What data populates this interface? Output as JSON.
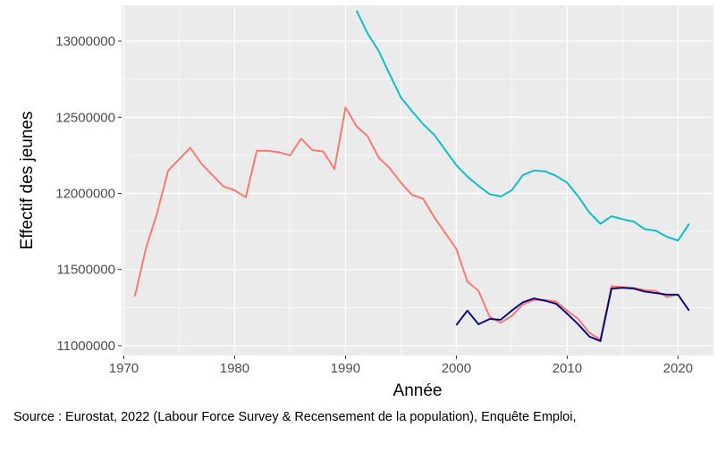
{
  "chart_data": {
    "type": "line",
    "xlabel": "Année",
    "ylabel": "Effectif des jeunes",
    "caption": "Source : Eurostat, 2022 (Labour Force Survey & Recensement de la population), Enquête Emploi,",
    "xlim": [
      1969.8,
      2023.2
    ],
    "ylim": [
      10935000,
      13235000
    ],
    "x_ticks": [
      1970,
      1980,
      1990,
      2000,
      2010,
      2020
    ],
    "y_ticks": [
      11000000,
      11500000,
      12000000,
      12500000,
      13000000
    ],
    "x_tick_labels": [
      "1970",
      "1980",
      "1990",
      "2000",
      "2010",
      "2020"
    ],
    "y_tick_labels": [
      "11000000",
      "11500000",
      "12000000",
      "12500000",
      "13000000"
    ],
    "grid": true,
    "legend": "none",
    "series": [
      {
        "color": "#F8766D",
        "x": [
          1971,
          1972,
          1973,
          1974,
          1975,
          1976,
          1977,
          1978,
          1979,
          1980,
          1981,
          1982,
          1983,
          1984,
          1985,
          1986,
          1987,
          1988,
          1989,
          1990,
          1991,
          1992,
          1993,
          1994,
          1995,
          1996,
          1997,
          1998,
          1999,
          2000,
          2001,
          2002,
          2003,
          2004,
          2005,
          2006,
          2007,
          2008,
          2009,
          2010,
          2011,
          2012,
          2013,
          2014,
          2015,
          2016,
          2017,
          2018,
          2019,
          2020
        ],
        "y": [
          11325000,
          11640000,
          11870000,
          12150000,
          12225000,
          12300000,
          12195000,
          12120000,
          12045000,
          12020000,
          11975000,
          12280000,
          12280000,
          12270000,
          12250000,
          12360000,
          12285000,
          12275000,
          12160000,
          12565000,
          12440000,
          12375000,
          12235000,
          12165000,
          12070000,
          11990000,
          11965000,
          11845000,
          11740000,
          11635000,
          11420000,
          11360000,
          11190000,
          11150000,
          11195000,
          11270000,
          11300000,
          11300000,
          11290000,
          11230000,
          11175000,
          11085000,
          11040000,
          11390000,
          11385000,
          11380000,
          11365000,
          11360000,
          11320000,
          11335000
        ]
      },
      {
        "color": "#00BFC4",
        "x": [
          1991,
          1992,
          1993,
          1994,
          1995,
          1996,
          1997,
          1998,
          1999,
          2000,
          2001,
          2002,
          2003,
          2004,
          2005,
          2006,
          2007,
          2008,
          2009,
          2010,
          2011,
          2012,
          2013,
          2014,
          2015,
          2016,
          2017,
          2018,
          2019,
          2020,
          2021
        ],
        "y": [
          13200000,
          13050000,
          12935000,
          12780000,
          12630000,
          12540000,
          12455000,
          12385000,
          12285000,
          12185000,
          12110000,
          12050000,
          11995000,
          11980000,
          12020000,
          12120000,
          12150000,
          12145000,
          12115000,
          12070000,
          11980000,
          11875000,
          11800000,
          11850000,
          11830000,
          11815000,
          11765000,
          11755000,
          11715000,
          11690000,
          11800000
        ]
      },
      {
        "color": "#00007F",
        "x": [
          2000,
          2001,
          2002,
          2003,
          2004,
          2005,
          2006,
          2007,
          2008,
          2009,
          2010,
          2011,
          2012,
          2013,
          2014,
          2015,
          2016,
          2017,
          2018,
          2019,
          2020,
          2021
        ],
        "y": [
          11135000,
          11230000,
          11140000,
          11175000,
          11170000,
          11230000,
          11285000,
          11310000,
          11295000,
          11275000,
          11210000,
          11140000,
          11060000,
          11030000,
          11375000,
          11380000,
          11375000,
          11355000,
          11345000,
          11335000,
          11335000,
          11230000
        ]
      }
    ]
  }
}
